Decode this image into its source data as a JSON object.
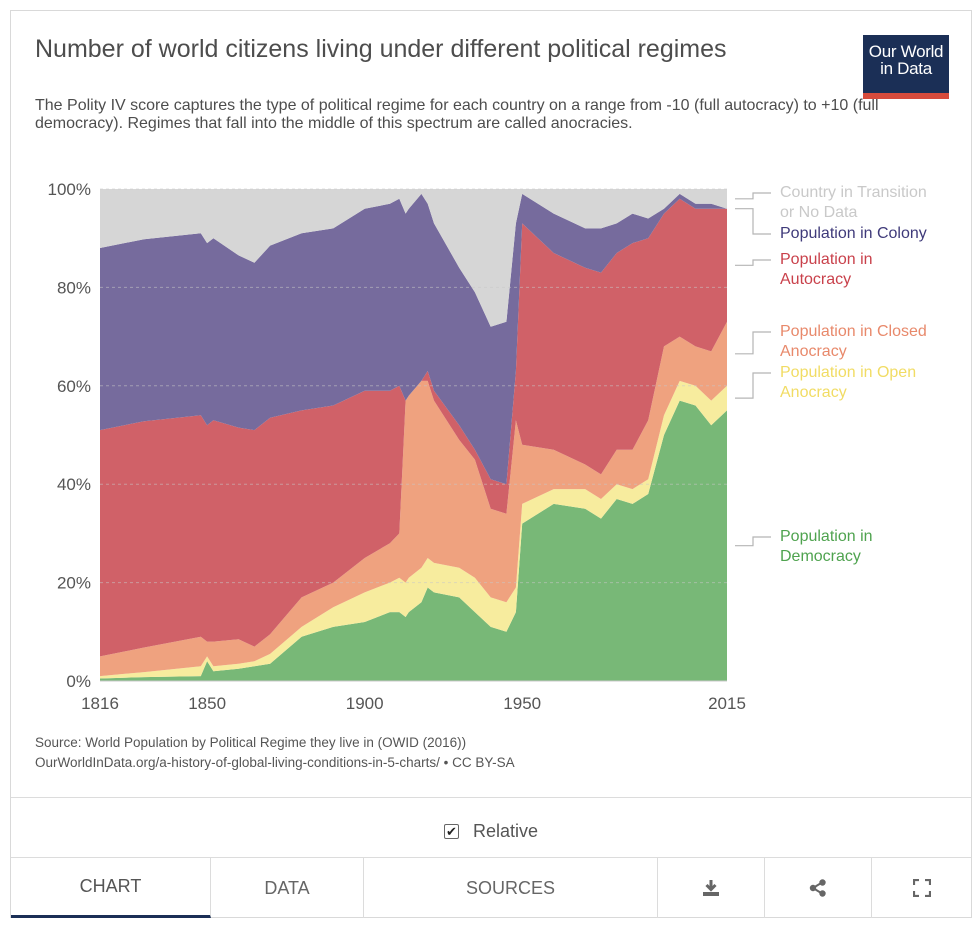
{
  "header": {
    "title": "Number of world citizens living under different political regimes",
    "subtitle": "The Polity IV score captures the type of political regime for each country on a range from -10 (full autocracy) to +10 (full democracy). Regimes that fall into the middle of this spectrum are called anocracies.",
    "logo_line1": "Our World",
    "logo_line2": "in Data"
  },
  "source": {
    "line1": "Source: World Population by Political Regime they live in (OWID (2016))",
    "line2": "OurWorldInData.org/a-history-of-global-living-conditions-in-5-charts/ • CC BY-SA"
  },
  "controls": {
    "relative_label": "Relative",
    "relative_checked": true
  },
  "tabs": [
    {
      "label": "CHART",
      "active": true
    },
    {
      "label": "DATA",
      "active": false
    },
    {
      "label": "SOURCES",
      "active": false
    }
  ],
  "tab_icons": [
    "download-icon",
    "share-icon",
    "fullscreen-icon"
  ],
  "colors": {
    "democracy": "#78b877",
    "open_anocracy": "#f7ec9e",
    "closed_anocracy": "#efa27f",
    "autocracy": "#d06168",
    "colony": "#766b9d",
    "transition": "#d6d6d6",
    "brand": "#1b2f56",
    "brand_accent": "#d74b3c"
  },
  "chart_data": {
    "type": "area",
    "stacked": true,
    "relative": true,
    "x_ticks": [
      "1816",
      "1850",
      "1900",
      "1950",
      "2015"
    ],
    "y_ticks": [
      "0%",
      "20%",
      "40%",
      "60%",
      "80%",
      "100%"
    ],
    "ylim": [
      0,
      100
    ],
    "xlim": [
      1816,
      2015
    ],
    "x": [
      1816,
      1830,
      1848,
      1850,
      1852,
      1860,
      1865,
      1870,
      1880,
      1890,
      1900,
      1908,
      1911,
      1913,
      1914,
      1918,
      1920,
      1922,
      1930,
      1935,
      1940,
      1945,
      1948,
      1950,
      1960,
      1970,
      1975,
      1980,
      1985,
      1990,
      1995,
      2000,
      2005,
      2010,
      2015
    ],
    "series": [
      {
        "name": "Population in Democracy",
        "color": "#78b877",
        "values": [
          0.5,
          0.8,
          1,
          4,
          2,
          2.5,
          3,
          3.5,
          9,
          11,
          12,
          14,
          14,
          13,
          14,
          16,
          19,
          18,
          17,
          14,
          11,
          10,
          14,
          32,
          36,
          35,
          33,
          37,
          36,
          38,
          50,
          57,
          56,
          52,
          55
        ]
      },
      {
        "name": "Population in Open Anocracy",
        "color": "#f7ec9e",
        "values": [
          0.5,
          1,
          2,
          1,
          1,
          1,
          1,
          2,
          2,
          4,
          6,
          6,
          7,
          7,
          7,
          7,
          6,
          6,
          6,
          7,
          6,
          6,
          5,
          4,
          3,
          4,
          4,
          3,
          3,
          3,
          4,
          4,
          4,
          5,
          5
        ]
      },
      {
        "name": "Population in Closed Anocracy",
        "color": "#efa27f",
        "values": [
          4,
          5,
          6,
          3,
          5,
          5,
          3,
          4,
          6,
          5,
          7,
          8,
          9,
          37,
          37,
          38,
          36,
          33,
          26,
          24,
          18,
          18,
          34,
          12,
          8,
          5,
          5,
          7,
          8,
          12,
          14,
          9,
          8,
          10,
          13
        ]
      },
      {
        "name": "Population in Autocracy",
        "color": "#d06168",
        "values": [
          46,
          46,
          45,
          44,
          45,
          43,
          44,
          44,
          38,
          36,
          34,
          31,
          30,
          0,
          0,
          0,
          2,
          2,
          3,
          2,
          6,
          6,
          10,
          45,
          40,
          40,
          41,
          40,
          42,
          37,
          27,
          28,
          28,
          29,
          23
        ]
      },
      {
        "name": "Population in Colony",
        "color": "#766b9d",
        "values": [
          37,
          37,
          37,
          37,
          37,
          35,
          34,
          35,
          36,
          36,
          37,
          38,
          38,
          38,
          38,
          38,
          34,
          34,
          32,
          32,
          31,
          33,
          30,
          6,
          8,
          8,
          9,
          6,
          6,
          4,
          1,
          1,
          1,
          1,
          0
        ]
      },
      {
        "name": "Country in Transition or No Data",
        "color": "#d6d6d6",
        "values": [
          12,
          10.2,
          9,
          11,
          10,
          13.5,
          15,
          11.5,
          9,
          8,
          4,
          3,
          2,
          5,
          4,
          1,
          3,
          7,
          16,
          21,
          28,
          27,
          7,
          1,
          5,
          8,
          8,
          7,
          5,
          6,
          4,
          1,
          3,
          3,
          4
        ]
      }
    ],
    "legend": [
      {
        "lines": [
          "Country in Transition",
          "or No Data"
        ],
        "color": "#c9c9c9"
      },
      {
        "lines": [
          "Population in Colony"
        ],
        "color": "#3f3a7a"
      },
      {
        "lines": [
          "Population in",
          "Autocracy"
        ],
        "color": "#c9414b"
      },
      {
        "lines": [
          "Population in Closed",
          "Anocracy"
        ],
        "color": "#e8896b"
      },
      {
        "lines": [
          "Population in Open",
          "Anocracy"
        ],
        "color": "#f1dc64"
      },
      {
        "lines": [
          "Population in",
          "Democracy"
        ],
        "color": "#4fa34f"
      }
    ],
    "legend_position": "right"
  }
}
